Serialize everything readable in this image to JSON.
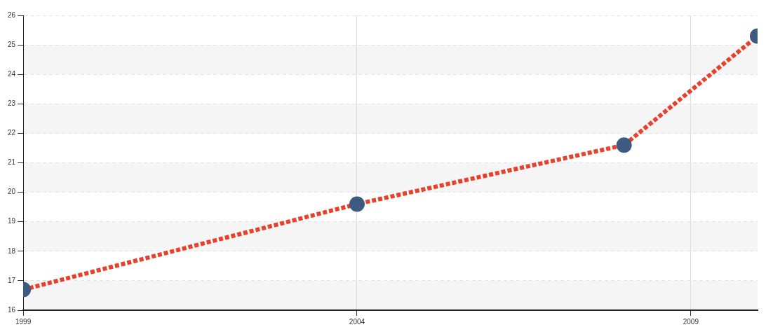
{
  "chart_data": {
    "type": "line",
    "x": [
      1999,
      2004,
      2008,
      2010
    ],
    "series": [
      {
        "color": "#e8402a",
        "values": [
          16.7,
          19.6,
          21.6,
          25.3
        ]
      }
    ],
    "xlim": [
      1999,
      2010
    ],
    "xticks": [
      1999,
      2004,
      2009
    ],
    "ylim": [
      16,
      26
    ],
    "yticks": [
      16,
      17,
      18,
      19,
      20,
      21,
      22,
      23,
      24,
      25,
      26
    ],
    "grid": true,
    "marker": "circle",
    "line_style": "dashed",
    "legend": false
  }
}
